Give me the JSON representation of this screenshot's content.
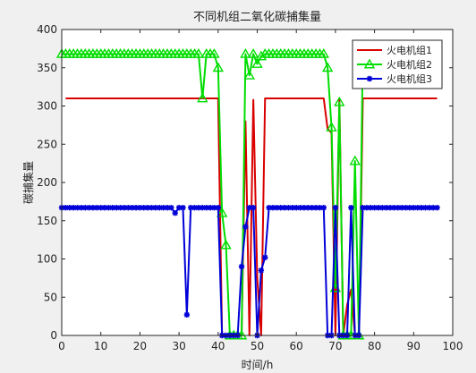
{
  "chart_data": {
    "type": "line",
    "title": "不同机组二氧化碳捕集量",
    "xlabel": "时间/h",
    "ylabel": "碳捕集量",
    "xlim": [
      0,
      100
    ],
    "ylim": [
      0,
      400
    ],
    "xticks": [
      0,
      10,
      20,
      30,
      40,
      50,
      60,
      70,
      80,
      90,
      100
    ],
    "yticks": [
      0,
      50,
      100,
      150,
      200,
      250,
      300,
      350,
      400
    ],
    "grid": false,
    "legend_position": "top-right",
    "series": [
      {
        "name": "火电机组1",
        "color": "#d90000",
        "marker": "none",
        "points": [
          [
            1,
            310
          ],
          [
            40,
            310
          ],
          [
            41,
            0
          ],
          [
            46,
            0
          ],
          [
            47,
            280
          ],
          [
            48,
            0
          ],
          [
            49,
            308
          ],
          [
            50,
            75
          ],
          [
            51,
            0
          ],
          [
            52,
            310
          ],
          [
            67,
            310
          ],
          [
            68,
            270
          ],
          [
            69,
            265
          ],
          [
            70,
            0
          ],
          [
            71,
            310
          ],
          [
            72,
            0
          ],
          [
            73,
            40
          ],
          [
            74,
            60
          ],
          [
            75,
            0
          ],
          [
            76,
            0
          ],
          [
            77,
            310
          ],
          [
            96,
            310
          ]
        ]
      },
      {
        "name": "火电机组2",
        "color": "#00dd00",
        "marker": "triangle",
        "points": [
          [
            0,
            368
          ],
          [
            35,
            368
          ],
          [
            36,
            310
          ],
          [
            37,
            368
          ],
          [
            39,
            368
          ],
          [
            40,
            350
          ],
          [
            41,
            160
          ],
          [
            42,
            118
          ],
          [
            43,
            0
          ],
          [
            46,
            0
          ],
          [
            47,
            368
          ],
          [
            48,
            340
          ],
          [
            49,
            368
          ],
          [
            50,
            355
          ],
          [
            51,
            365
          ],
          [
            52,
            368
          ],
          [
            67,
            368
          ],
          [
            68,
            350
          ],
          [
            69,
            272
          ],
          [
            70,
            62
          ],
          [
            71,
            305
          ],
          [
            72,
            0
          ],
          [
            73,
            0
          ],
          [
            74,
            0
          ],
          [
            75,
            228
          ],
          [
            76,
            0
          ],
          [
            77,
            368
          ]
        ]
      },
      {
        "name": "火电机组3",
        "color": "#0000d9",
        "marker": "star",
        "points": [
          [
            0,
            167
          ],
          [
            28,
            167
          ],
          [
            29,
            160
          ],
          [
            30,
            167
          ],
          [
            31,
            167
          ],
          [
            32,
            27
          ],
          [
            33,
            167
          ],
          [
            40,
            167
          ],
          [
            41,
            0
          ],
          [
            42,
            0
          ],
          [
            43,
            0
          ],
          [
            44,
            0
          ],
          [
            45,
            0
          ],
          [
            46,
            90
          ],
          [
            47,
            142
          ],
          [
            48,
            167
          ],
          [
            49,
            167
          ],
          [
            50,
            0
          ],
          [
            51,
            85
          ],
          [
            52,
            102
          ],
          [
            53,
            167
          ],
          [
            67,
            167
          ],
          [
            68,
            0
          ],
          [
            69,
            0
          ],
          [
            70,
            167
          ],
          [
            71,
            0
          ],
          [
            72,
            0
          ],
          [
            73,
            0
          ],
          [
            74,
            167
          ],
          [
            75,
            0
          ],
          [
            76,
            0
          ],
          [
            77,
            167
          ],
          [
            96,
            167
          ]
        ]
      }
    ]
  }
}
